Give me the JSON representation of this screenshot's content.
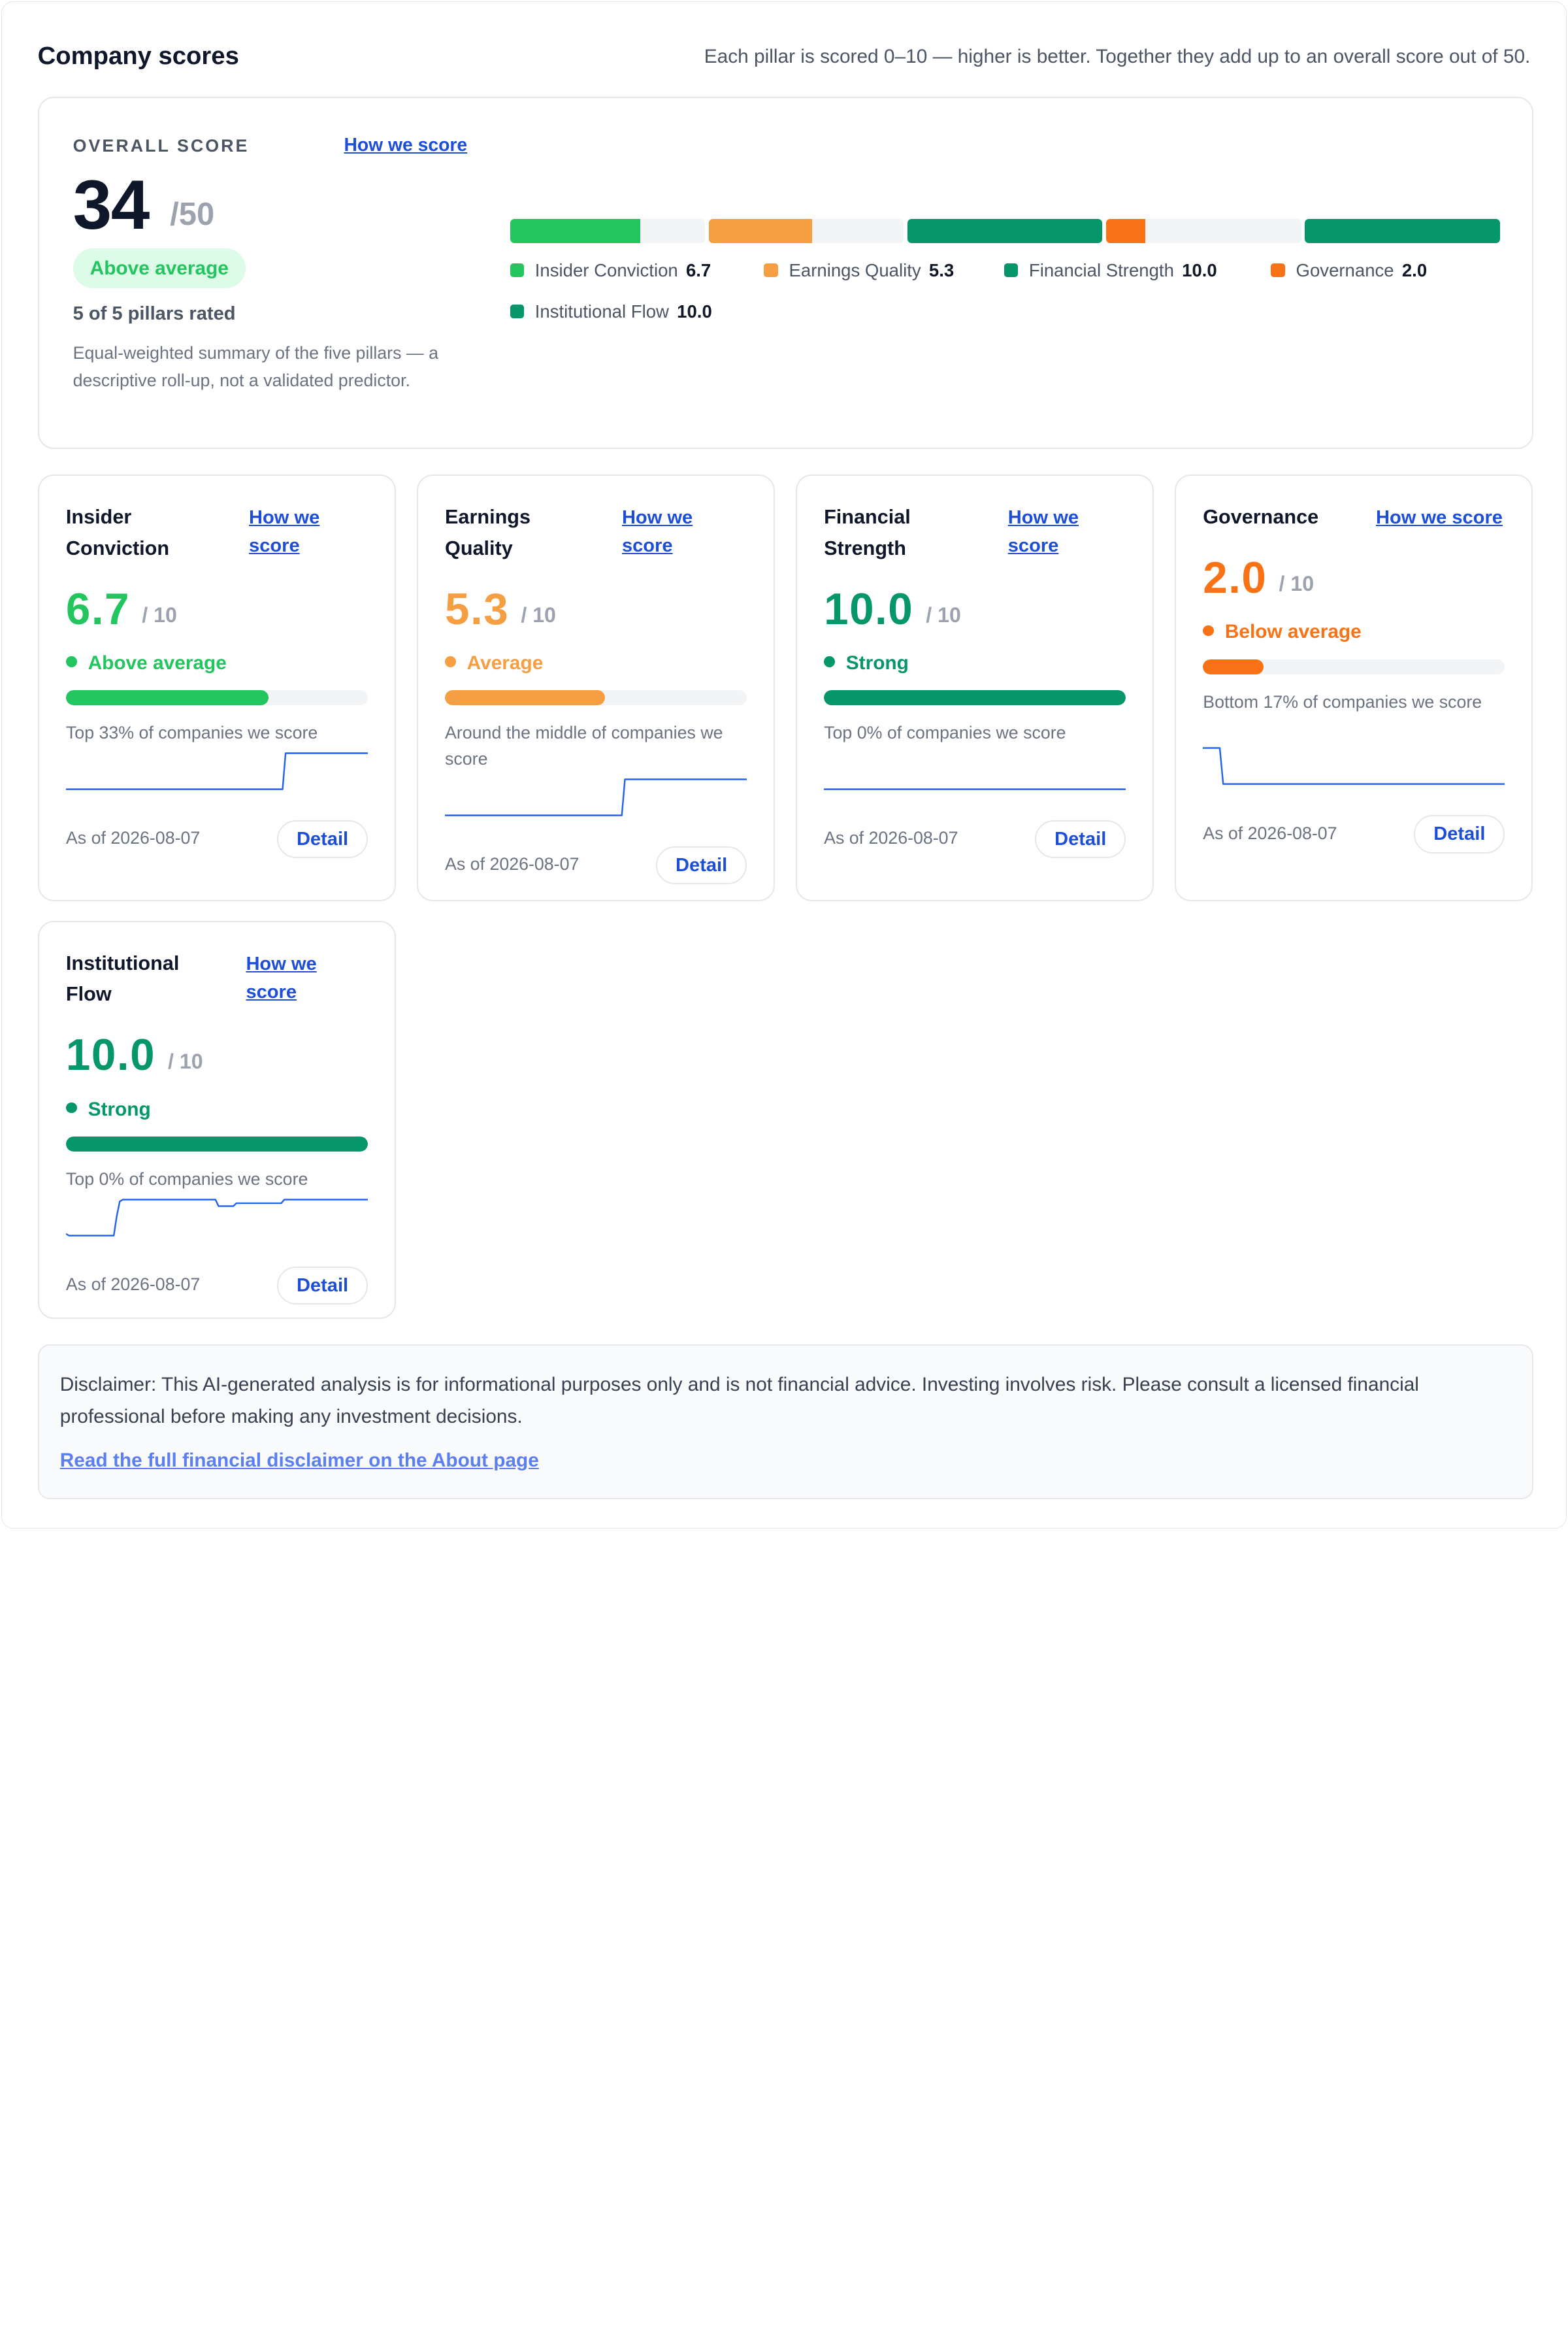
{
  "header": {
    "title": "Company scores",
    "subtitle": "Each pillar is scored 0–10 — higher is better. Together they add up to an overall score out of 50."
  },
  "overall": {
    "label": "OVERALL SCORE",
    "how_link": "How we score",
    "score": "34",
    "max": "/50",
    "badge": "Above average",
    "rated": "5 of 5 pillars rated",
    "note": "Equal-weighted summary of the five pillars — a descriptive roll-up, not a validated predictor.",
    "legend": [
      {
        "name": "Insider Conviction",
        "value": "6.7",
        "color": "#22c55e"
      },
      {
        "name": "Earnings Quality",
        "value": "5.3",
        "color": "#f59e42"
      },
      {
        "name": "Financial Strength",
        "value": "10.0",
        "color": "#059669"
      },
      {
        "name": "Governance",
        "value": "2.0",
        "color": "#f97316"
      },
      {
        "name": "Institutional Flow",
        "value": "10.0",
        "color": "#059669"
      }
    ],
    "segment_fractions": [
      0.67,
      0.53,
      1.0,
      0.2,
      1.0
    ]
  },
  "pillars": [
    {
      "name": "Insider Conviction",
      "how_link": "How we score",
      "score": "6.7",
      "max": "/ 10",
      "status": "Above average",
      "color": "#22c55e",
      "fraction": 0.67,
      "rank_text": "Top 33% of companies we score",
      "as_of": "As of 2026-08-07",
      "detail_label": "Detail",
      "trend": [
        0,
        0,
        0,
        0,
        0,
        0,
        0,
        0,
        0,
        0,
        0,
        0,
        0,
        0,
        0,
        0,
        0,
        0,
        0,
        0,
        0,
        0,
        0,
        0,
        0,
        0,
        0,
        0,
        0,
        0,
        0,
        0,
        0,
        0,
        0,
        0,
        0,
        0,
        0,
        0,
        0,
        0,
        0,
        0,
        0,
        0,
        0,
        0,
        0,
        0,
        0,
        0,
        0,
        0,
        0,
        0,
        0,
        0,
        0,
        0,
        0,
        0,
        0,
        0,
        0,
        0,
        0,
        0,
        0,
        0,
        0,
        0,
        1,
        1,
        1,
        1,
        1,
        1,
        1,
        1,
        1,
        1,
        1,
        1,
        1,
        1,
        1,
        1,
        1,
        1,
        1,
        1,
        1,
        1,
        1,
        1,
        1,
        1,
        1,
        1
      ]
    },
    {
      "name": "Earnings Quality",
      "how_link": "How we score",
      "score": "5.3",
      "max": "/ 10",
      "status": "Average",
      "color": "#f59e42",
      "fraction": 0.53,
      "rank_text": "Around the middle of companies we score",
      "as_of": "As of 2026-08-07",
      "detail_label": "Detail",
      "trend": [
        0,
        0,
        0,
        0,
        0,
        0,
        0,
        0,
        0,
        0,
        0,
        0,
        0,
        0,
        0,
        0,
        0,
        0,
        0,
        0,
        0,
        0,
        0,
        0,
        0,
        0,
        0,
        0,
        0,
        0,
        0,
        0,
        0,
        0,
        0,
        0,
        0,
        0,
        0,
        0,
        0,
        0,
        0,
        0,
        0,
        0,
        0,
        0,
        0,
        0,
        0,
        0,
        0,
        0,
        0,
        0,
        0,
        0,
        0,
        1,
        1,
        1,
        1,
        1,
        1,
        1,
        1,
        1,
        1,
        1,
        1,
        1,
        1,
        1,
        1,
        1,
        1,
        1,
        1,
        1,
        1,
        1,
        1,
        1,
        1,
        1,
        1,
        1,
        1,
        1,
        1,
        1,
        1,
        1,
        1,
        1,
        1,
        1,
        1,
        1
      ]
    },
    {
      "name": "Financial Strength",
      "how_link": "How we score",
      "score": "10.0",
      "max": "/ 10",
      "status": "Strong",
      "color": "#059669",
      "fraction": 1.0,
      "rank_text": "Top 0% of companies we score",
      "as_of": "As of 2026-08-07",
      "detail_label": "Detail",
      "trend": [
        0,
        0,
        0,
        0,
        0,
        0,
        0,
        0,
        0,
        0
      ]
    },
    {
      "name": "Governance",
      "how_link": "How we score",
      "score": "2.0",
      "max": "/ 10",
      "status": "Below average",
      "color": "#f97316",
      "fraction": 0.2,
      "rank_text": "Bottom 17% of companies we score",
      "as_of": "As of 2026-08-07",
      "detail_label": "Detail",
      "trend": [
        1,
        1,
        1,
        1,
        1,
        1,
        0,
        0,
        0,
        0,
        0,
        0,
        0,
        0,
        0,
        0,
        0,
        0,
        0,
        0,
        0,
        0,
        0,
        0,
        0,
        0,
        0,
        0,
        0,
        0,
        0,
        0,
        0,
        0,
        0,
        0,
        0,
        0,
        0,
        0,
        0,
        0,
        0,
        0,
        0,
        0,
        0,
        0,
        0,
        0,
        0,
        0,
        0,
        0,
        0,
        0,
        0,
        0,
        0,
        0,
        0,
        0,
        0,
        0,
        0,
        0,
        0,
        0,
        0,
        0,
        0,
        0,
        0,
        0,
        0,
        0,
        0,
        0,
        0,
        0,
        0,
        0,
        0,
        0,
        0,
        0,
        0,
        0,
        0,
        0
      ]
    },
    {
      "name": "Institutional Flow",
      "how_link": "How we score",
      "score": "10.0",
      "max": "/ 10",
      "status": "Strong",
      "color": "#059669",
      "fraction": 1.0,
      "rank_text": "Top 0% of companies we score",
      "as_of": "As of 2026-08-07",
      "detail_label": "Detail",
      "trend": [
        0.05,
        0,
        0,
        0,
        0,
        0,
        0,
        0,
        0,
        0,
        0,
        0,
        0,
        0,
        0,
        0,
        0,
        0.55,
        0.95,
        1,
        1,
        1,
        1,
        1,
        1,
        1,
        1,
        1,
        1,
        1,
        1,
        1,
        1,
        1,
        1,
        1,
        1,
        1,
        1,
        1,
        1,
        1,
        1,
        1,
        1,
        1,
        1,
        1,
        1,
        1,
        1,
        0.82,
        0.82,
        0.82,
        0.82,
        0.82,
        0.82,
        0.9,
        0.9,
        0.9,
        0.9,
        0.9,
        0.9,
        0.9,
        0.9,
        0.9,
        0.9,
        0.9,
        0.9,
        0.9,
        0.9,
        0.9,
        0.9,
        1,
        1,
        1,
        1,
        1,
        1,
        1,
        1,
        1,
        1,
        1,
        1,
        1,
        1,
        1,
        1,
        1,
        1,
        1,
        1,
        1,
        1,
        1,
        1,
        1,
        1,
        1,
        1,
        1
      ]
    }
  ],
  "disclaimer": {
    "text": "Disclaimer: This AI-generated analysis is for informational purposes only and is not financial advice. Investing involves risk. Please consult a licensed financial professional before making any investment decisions.",
    "link": "Read the full financial disclaimer on the About page"
  },
  "colors": {
    "accent_link": "#1d4ed8",
    "spark_line": "#2563eb",
    "track": "#f3f4f6"
  }
}
